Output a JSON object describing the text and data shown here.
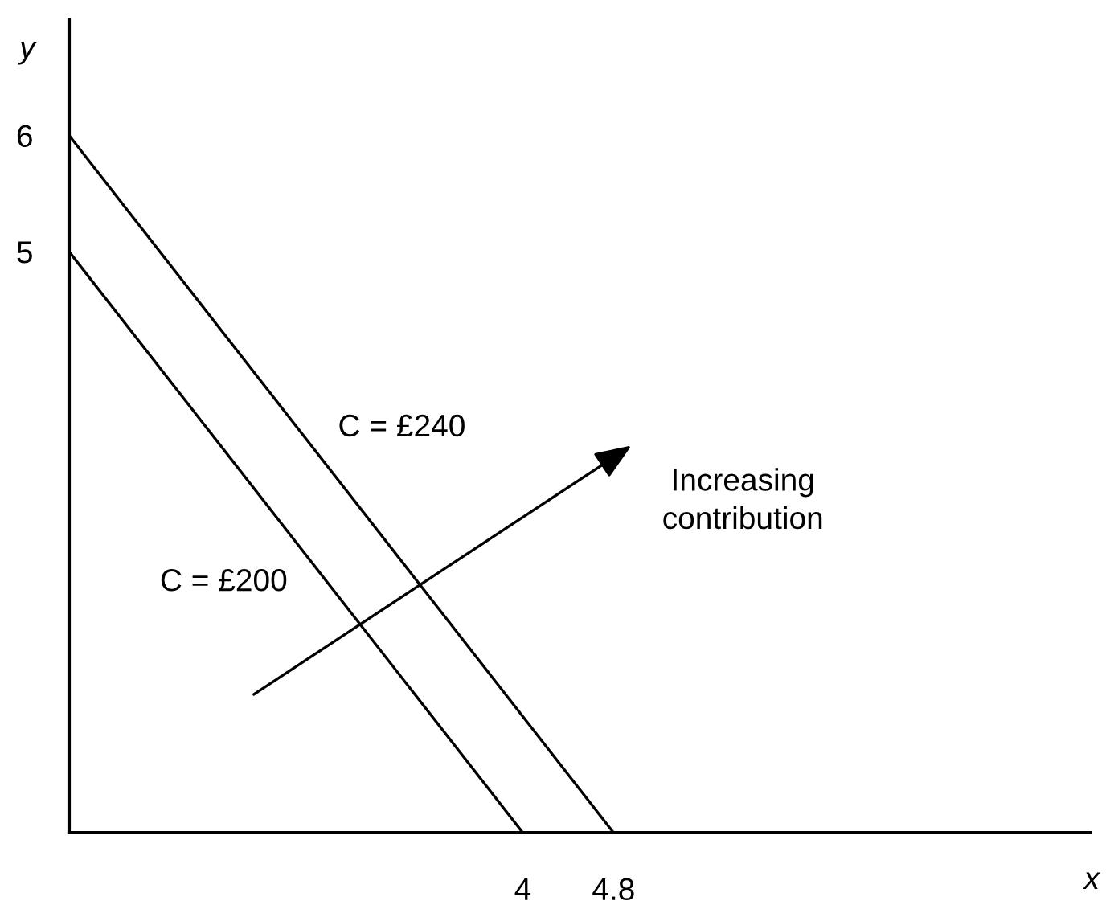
{
  "chart_data": {
    "type": "line",
    "xlabel": "x",
    "ylabel": "y",
    "series": [
      {
        "name": "C = £200",
        "color": "#000000",
        "x": [
          0,
          4
        ],
        "values": [
          5,
          0
        ]
      },
      {
        "name": "C = £240",
        "color": "#000000",
        "x": [
          0,
          4.8
        ],
        "values": [
          6,
          0
        ]
      }
    ],
    "xlim": [
      0,
      9
    ],
    "ylim": [
      0,
      7
    ],
    "xticks": [
      4,
      4.8
    ],
    "yticks": [
      5,
      6
    ],
    "annotations": [
      "Increasing\ncontribution"
    ]
  }
}
